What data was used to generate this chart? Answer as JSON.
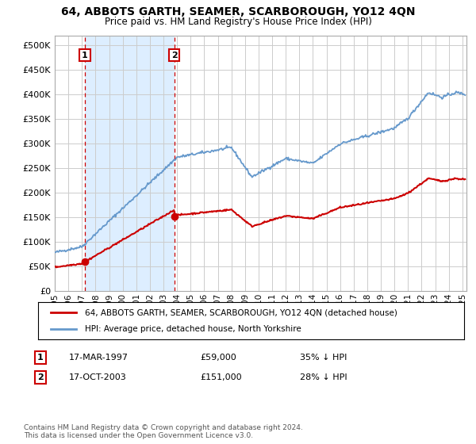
{
  "title": "64, ABBOTS GARTH, SEAMER, SCARBOROUGH, YO12 4QN",
  "subtitle": "Price paid vs. HM Land Registry's House Price Index (HPI)",
  "legend_label_red": "64, ABBOTS GARTH, SEAMER, SCARBOROUGH, YO12 4QN (detached house)",
  "legend_label_blue": "HPI: Average price, detached house, North Yorkshire",
  "annotation1_label": "1",
  "annotation1_date": "17-MAR-1997",
  "annotation1_price": "£59,000",
  "annotation1_hpi": "35% ↓ HPI",
  "annotation2_label": "2",
  "annotation2_date": "17-OCT-2003",
  "annotation2_price": "£151,000",
  "annotation2_hpi": "28% ↓ HPI",
  "footnote": "Contains HM Land Registry data © Crown copyright and database right 2024.\nThis data is licensed under the Open Government Licence v3.0.",
  "ylim": [
    0,
    520000
  ],
  "yticks": [
    0,
    50000,
    100000,
    150000,
    200000,
    250000,
    300000,
    350000,
    400000,
    450000,
    500000
  ],
  "sale1_x": 1997.21,
  "sale1_y": 59000,
  "sale2_x": 2003.79,
  "sale2_y": 151000,
  "red_color": "#cc0000",
  "blue_color": "#6699cc",
  "shade_color": "#ddeeff",
  "background_color": "#ffffff",
  "plot_bg_color": "#ffffff",
  "grid_color": "#cccccc",
  "xlim_start": 1995,
  "xlim_end": 2025.3
}
